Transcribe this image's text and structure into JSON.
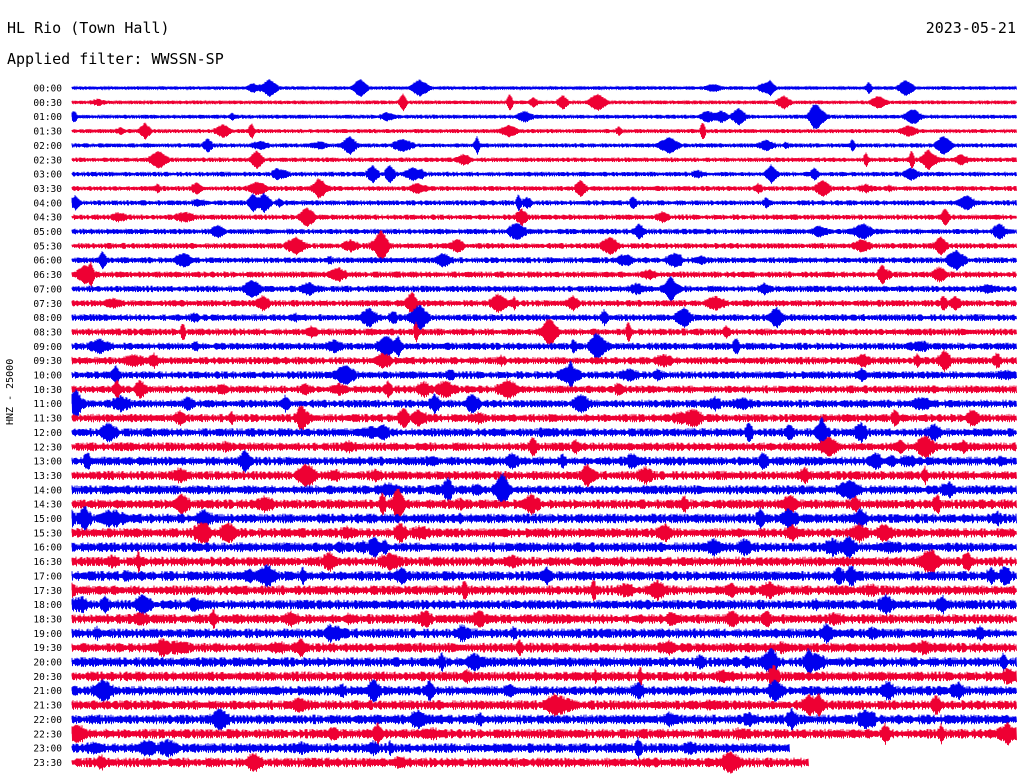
{
  "header": {
    "station": "HL Rio (Town Hall)",
    "date": "2023-05-21",
    "filter_text": "Applied filter: WWSSN-SP"
  },
  "chart_data": {
    "type": "line",
    "title": "HL Rio (Town Hall)",
    "ylabel": "HNZ - 25000",
    "rows": [
      "00:00",
      "00:30",
      "01:00",
      "01:30",
      "02:00",
      "02:30",
      "03:00",
      "03:30",
      "04:00",
      "04:30",
      "05:00",
      "05:30",
      "06:00",
      "06:30",
      "07:00",
      "07:30",
      "08:00",
      "08:30",
      "09:00",
      "09:30",
      "10:00",
      "10:30",
      "11:00",
      "11:30",
      "12:00",
      "12:30",
      "13:00",
      "13:30",
      "14:00",
      "14:30",
      "15:00",
      "15:30",
      "16:00",
      "16:30",
      "17:00",
      "17:30",
      "18:00",
      "18:30",
      "19:00",
      "19:30",
      "20:00",
      "20:30",
      "21:00",
      "21:30",
      "22:00",
      "22:30",
      "23:00",
      "23:30"
    ],
    "colors": [
      "#0000ee",
      "#ee0033"
    ],
    "last_row_fraction": 0.78,
    "penultimate_row_fraction": 0.76
  }
}
